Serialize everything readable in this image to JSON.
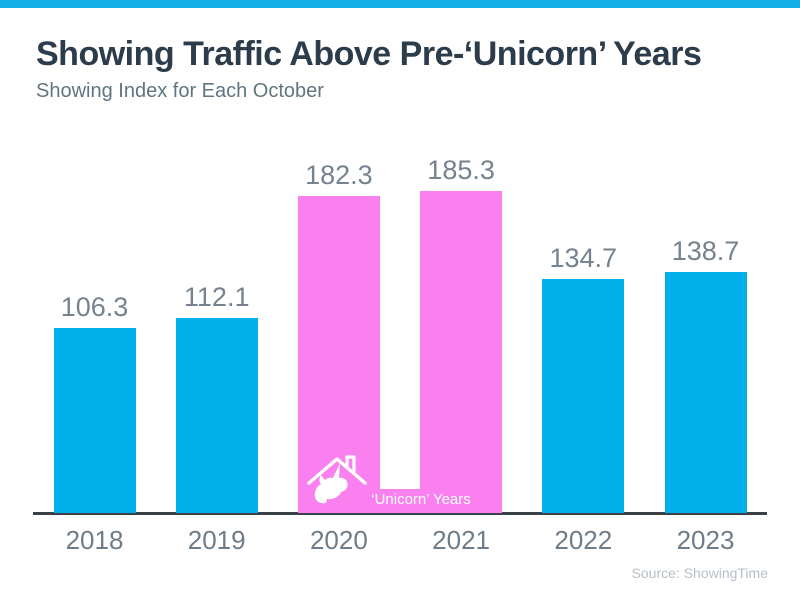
{
  "page": {
    "title": "Showing Traffic Above Pre-‘Unicorn’ Years",
    "subtitle": "Showing Index for Each October",
    "source": "Source: ShowingTime"
  },
  "colors": {
    "accent_cyan": "#00AEEA",
    "accent_pink": "#FA80EF",
    "top_bar": "#14AEE9",
    "title_text": "#2C3C4B",
    "subtitle_text": "#61747F",
    "value_label_text": "#76828F",
    "tick_label_text": "#6E7C8A",
    "axis_line": "#3B4046",
    "source_text": "#B6BFC7",
    "band_label_text": "#FFFFFF"
  },
  "chart_data": {
    "type": "bar",
    "title": "Showing Traffic Above Pre-‘Unicorn’ Years",
    "subtitle": "Showing Index for Each October",
    "categories": [
      "2018",
      "2019",
      "2020",
      "2021",
      "2022",
      "2023"
    ],
    "values": [
      106.3,
      112.1,
      182.3,
      185.3,
      134.7,
      138.7
    ],
    "value_labels": [
      "106.3",
      "112.1",
      "182.3",
      "185.3",
      "134.7",
      "138.7"
    ],
    "bar_colors": [
      "cyan",
      "cyan",
      "pink",
      "pink",
      "cyan",
      "cyan"
    ],
    "palette": {
      "cyan": "#00AEEA",
      "pink": "#FA80EF"
    },
    "unicorn_band": {
      "label": "‘Unicorn’ Years",
      "categories": [
        "2020",
        "2021"
      ],
      "icon": "unicorn-house-icon"
    },
    "source": "Source: ShowingTime",
    "xlabel": "",
    "ylabel": "",
    "ylim": [
      0,
      200
    ],
    "layout_hints": {
      "gridlines": false,
      "y_axis": "hidden",
      "x_axis_line": true,
      "value_labels_position": "above-bars",
      "legend": "none"
    }
  }
}
